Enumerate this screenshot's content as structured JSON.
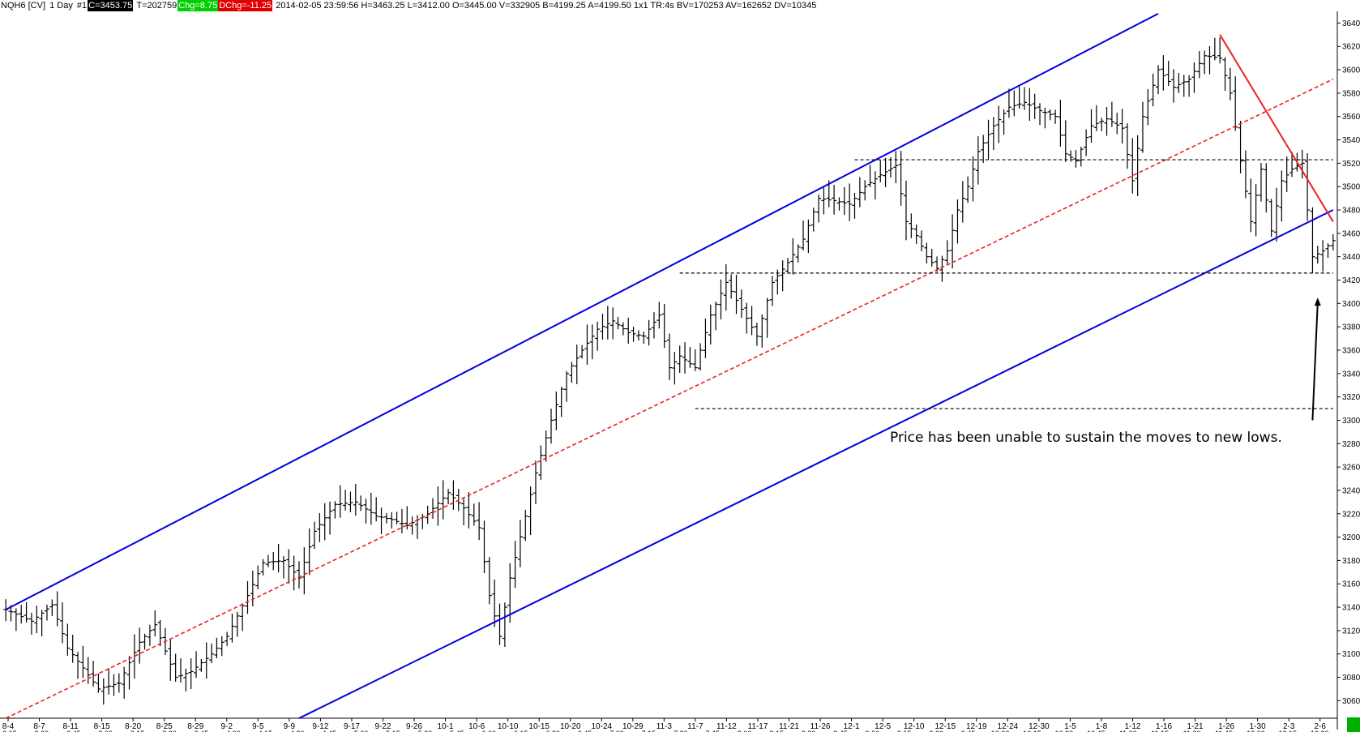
{
  "header": {
    "symbol": "NQH6 [CV]",
    "interval": "1 Day",
    "id": "#1",
    "close": "C=3453.75",
    "t": "T=202759",
    "chg": "Chg=8.75",
    "dchg": "DChg=-11.25",
    "info": "2014-02-05 23:59:56 H=3463.25 L=3412.00 O=3445.00 V=332905 B=4199.25 A=4199.50 1x1 TR:4s BV=170253 AV=162652 DV=10345"
  },
  "annotation": "Price has been unable to sustain the moves to new lows.",
  "colors": {
    "channel": "#0000dd",
    "midline": "#ee2222",
    "downtrend": "#ee2222",
    "bars": "#000000",
    "support": "#000000"
  },
  "chart_data": {
    "type": "ohlc",
    "y_ticks": [
      "3060.00",
      "3080.00",
      "3100.00",
      "3120.00",
      "3140.00",
      "3160.00",
      "3180.00",
      "3200.00",
      "3220.00",
      "3240.00",
      "3260.00",
      "3280.00",
      "3300.00",
      "3320.00",
      "3340.00",
      "3360.00",
      "3380.00",
      "3400.00",
      "3420.00",
      "3440.00",
      "3460.00",
      "3480.00",
      "3500.00",
      "3520.00",
      "3540.00",
      "3560.00",
      "3580.00",
      "3600.00",
      "3620.00",
      "3640.00"
    ],
    "ylim": [
      3045,
      3650
    ],
    "x_dates": [
      "8-4",
      "8-7",
      "8-11",
      "8-15",
      "8-20",
      "8-25",
      "8-29",
      "9-2",
      "9-5",
      "9-9",
      "9-12",
      "9-17",
      "9-22",
      "9-26",
      "10-1",
      "10-6",
      "10-10",
      "10-15",
      "10-20",
      "10-24",
      "10-29",
      "11-3",
      "11-7",
      "11-12",
      "11-17",
      "11-21",
      "11-26",
      "12-1",
      "12-5",
      "12-10",
      "12-15",
      "12-19",
      "12-24",
      "12-30",
      "1-5",
      "1-8",
      "1-12",
      "1-16",
      "1-21",
      "1-26",
      "1-30",
      "2-3",
      "2-6"
    ],
    "x_times": [
      "2:15",
      "2:30",
      "2:45",
      "3:00",
      "3:15",
      "3:30",
      "3:45",
      "4:00",
      "4:15",
      "4:30",
      "4:45",
      "5:00",
      "5:15",
      "5:30",
      "5:45",
      "6:00",
      "6:15",
      "6:30",
      "6:45",
      "7:00",
      "7:15",
      "7:30",
      "7:45",
      "8:00",
      "8:15",
      "8:30",
      "8:45",
      "9:00",
      "9:15",
      "9:30",
      "9:45",
      "10:00",
      "10:15",
      "10:30",
      "10:45",
      "11:00",
      "11:15",
      "11:30",
      "11:45",
      "12:00",
      "12:15",
      "12:30"
    ],
    "anchors": [
      [
        0,
        3138
      ],
      [
        5,
        3128
      ],
      [
        9,
        3142
      ],
      [
        12,
        3105
      ],
      [
        15,
        3088
      ],
      [
        18,
        3070
      ],
      [
        22,
        3075
      ],
      [
        26,
        3110
      ],
      [
        29,
        3125
      ],
      [
        33,
        3080
      ],
      [
        36,
        3085
      ],
      [
        40,
        3100
      ],
      [
        43,
        3115
      ],
      [
        47,
        3150
      ],
      [
        50,
        3178
      ],
      [
        54,
        3180
      ],
      [
        57,
        3165
      ],
      [
        60,
        3205
      ],
      [
        64,
        3228
      ],
      [
        68,
        3230
      ],
      [
        72,
        3218
      ],
      [
        75,
        3215
      ],
      [
        78,
        3210
      ],
      [
        82,
        3220
      ],
      [
        86,
        3238
      ],
      [
        89,
        3225
      ],
      [
        92,
        3208
      ],
      [
        94,
        3150
      ],
      [
        96,
        3115
      ],
      [
        98,
        3165
      ],
      [
        101,
        3218
      ],
      [
        103,
        3255
      ],
      [
        106,
        3300
      ],
      [
        109,
        3340
      ],
      [
        112,
        3360
      ],
      [
        115,
        3378
      ],
      [
        118,
        3385
      ],
      [
        121,
        3375
      ],
      [
        124,
        3372
      ],
      [
        127,
        3390
      ],
      [
        129,
        3345
      ],
      [
        131,
        3355
      ],
      [
        134,
        3345
      ],
      [
        137,
        3390
      ],
      [
        140,
        3418
      ],
      [
        143,
        3395
      ],
      [
        146,
        3372
      ],
      [
        149,
        3418
      ],
      [
        152,
        3435
      ],
      [
        155,
        3455
      ],
      [
        158,
        3490
      ],
      [
        161,
        3488
      ],
      [
        164,
        3485
      ],
      [
        167,
        3500
      ],
      [
        170,
        3510
      ],
      [
        173,
        3518
      ],
      [
        175,
        3470
      ],
      [
        177,
        3458
      ],
      [
        179,
        3440
      ],
      [
        181,
        3430
      ],
      [
        183,
        3445
      ],
      [
        185,
        3480
      ],
      [
        187,
        3500
      ],
      [
        189,
        3530
      ],
      [
        192,
        3552
      ],
      [
        195,
        3568
      ],
      [
        198,
        3572
      ],
      [
        201,
        3565
      ],
      [
        204,
        3560
      ],
      [
        206,
        3528
      ],
      [
        208,
        3522
      ],
      [
        211,
        3552
      ],
      [
        214,
        3558
      ],
      [
        217,
        3550
      ],
      [
        219,
        3505
      ],
      [
        221,
        3560
      ],
      [
        224,
        3600
      ],
      [
        227,
        3585
      ],
      [
        230,
        3592
      ],
      [
        233,
        3612
      ],
      [
        236,
        3610
      ],
      [
        238,
        3580
      ],
      [
        240,
        3522
      ],
      [
        242,
        3470
      ],
      [
        244,
        3515
      ],
      [
        246,
        3462
      ],
      [
        248,
        3505
      ],
      [
        250,
        3515
      ],
      [
        252,
        3520
      ],
      [
        254,
        3440
      ],
      [
        256,
        3445
      ],
      [
        258,
        3453.75
      ]
    ],
    "channel_upper": [
      [
        0,
        3138
      ],
      [
        224,
        3648
      ]
    ],
    "channel_lower": [
      [
        57,
        3045
      ],
      [
        258,
        3480
      ]
    ],
    "midline": [
      [
        0,
        3045
      ],
      [
        258,
        3592
      ]
    ],
    "downtrend": [
      [
        236,
        3630
      ],
      [
        258,
        3470
      ]
    ],
    "support_lines": [
      {
        "value": 3523,
        "from": 165,
        "to": 258
      },
      {
        "value": 3426,
        "from": 131,
        "to": 258
      },
      {
        "value": 3310,
        "from": 134,
        "to": 258
      }
    ],
    "arrow": {
      "from": [
        254,
        3300
      ],
      "to": [
        255,
        3405
      ]
    }
  }
}
